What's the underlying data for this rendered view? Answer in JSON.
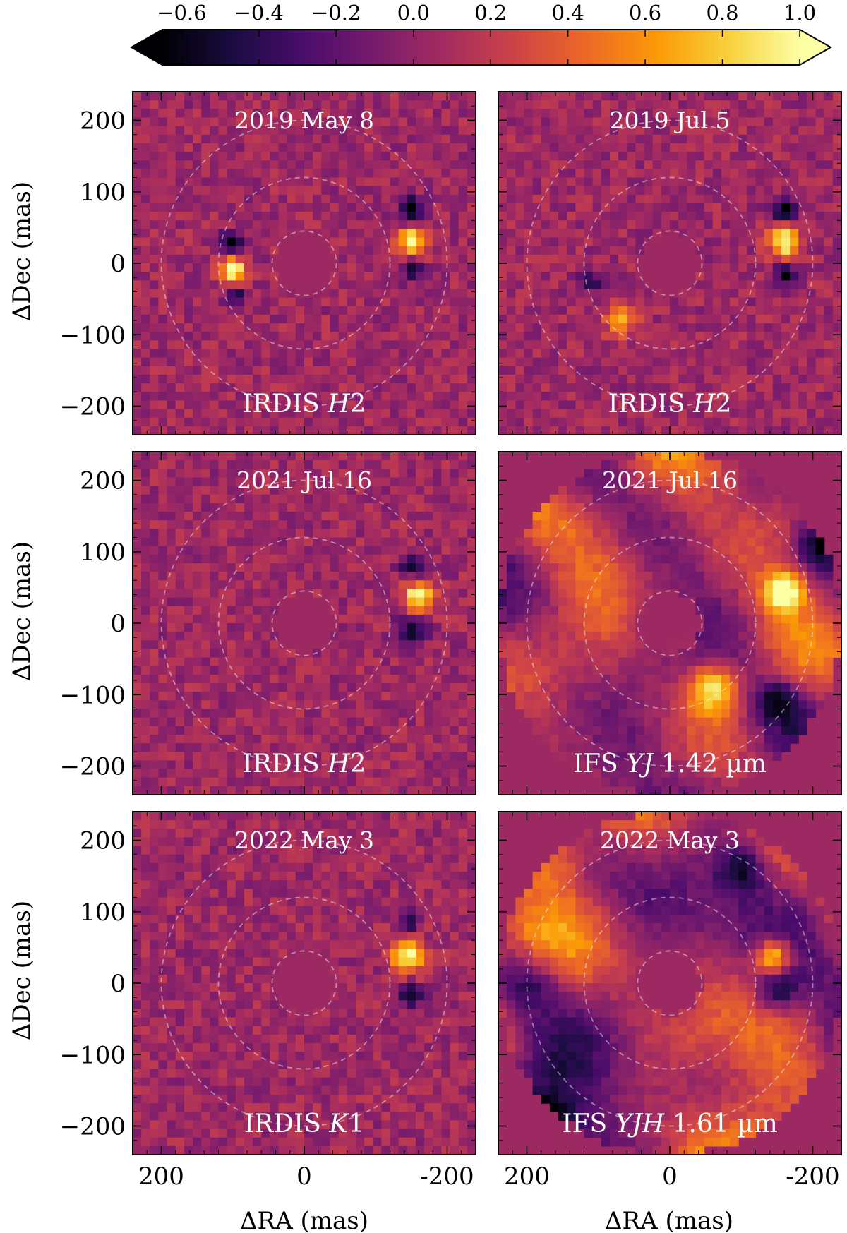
{
  "colorbar": {
    "ticks": [
      "−0.6",
      "−0.4",
      "−0.2",
      "0.0",
      "0.2",
      "0.4",
      "0.6",
      "0.8",
      "1.0"
    ],
    "tick_values": [
      -0.6,
      -0.4,
      -0.2,
      0.0,
      0.2,
      0.4,
      0.6,
      0.8,
      1.0
    ],
    "range": [
      -0.65,
      1.0
    ],
    "extend": "both",
    "colormap": "inferno",
    "stops": [
      "#000004",
      "#1b0c41",
      "#4a0c6b",
      "#781c6d",
      "#a52c60",
      "#cf4446",
      "#ed6925",
      "#fb9b06",
      "#f7d13d",
      "#fcffa4"
    ]
  },
  "axes": {
    "xlabel": "ΔRA (mas)",
    "ylabel": "ΔDec (mas)",
    "x_tick_labels": [
      "200",
      "0",
      "-200"
    ],
    "x_tick_values": [
      200,
      0,
      -200
    ],
    "y_tick_labels": [
      "200",
      "100",
      "0",
      "−100",
      "−200"
    ],
    "y_tick_values": [
      200,
      100,
      0,
      -100,
      -200
    ],
    "xlim": [
      240,
      -240
    ],
    "ylim": [
      -240,
      240
    ]
  },
  "chart_data": {
    "type": "heatmap",
    "panels": [
      {
        "date": "2019 May 8",
        "instrument_prefix": "IRDIS ",
        "instrument_italic": "H",
        "instrument_suffix": "2",
        "kind": "irdis",
        "sources": [
          {
            "x": -150,
            "y": 30,
            "value": 1.0,
            "sigma": 14
          },
          {
            "x": 100,
            "y": -10,
            "value": 1.0,
            "sigma": 13
          }
        ],
        "negatives": [
          {
            "x": -150,
            "y": 75,
            "value": -0.65,
            "sigma": 13
          },
          {
            "x": -150,
            "y": -10,
            "value": -0.5,
            "sigma": 11
          },
          {
            "x": 100,
            "y": 30,
            "value": -0.6,
            "sigma": 11
          },
          {
            "x": 95,
            "y": -45,
            "value": -0.6,
            "sigma": 10
          }
        ]
      },
      {
        "date": "2019 Jul 5",
        "instrument_prefix": "IRDIS ",
        "instrument_italic": "H",
        "instrument_suffix": "2",
        "kind": "irdis",
        "sources": [
          {
            "x": -160,
            "y": 30,
            "value": 1.0,
            "sigma": 15
          },
          {
            "x": 70,
            "y": -80,
            "value": 0.55,
            "sigma": 16
          }
        ],
        "negatives": [
          {
            "x": -160,
            "y": 75,
            "value": -0.65,
            "sigma": 13
          },
          {
            "x": -160,
            "y": -15,
            "value": -0.6,
            "sigma": 11
          },
          {
            "x": 110,
            "y": -25,
            "value": -0.5,
            "sigma": 12
          }
        ]
      },
      {
        "date": "2021 Jul 16",
        "instrument_prefix": "IRDIS ",
        "instrument_italic": "H",
        "instrument_suffix": "2",
        "kind": "irdis",
        "sources": [
          {
            "x": -160,
            "y": 37,
            "value": 1.0,
            "sigma": 15
          }
        ],
        "negatives": [
          {
            "x": -150,
            "y": 80,
            "value": -0.6,
            "sigma": 12
          },
          {
            "x": -150,
            "y": -10,
            "value": -0.65,
            "sigma": 14
          }
        ]
      },
      {
        "date": "2021 Jul 16",
        "instrument_prefix": "IFS ",
        "instrument_italic": "YJ",
        "instrument_suffix": " 1.42 µm",
        "kind": "ifs",
        "sources": [
          {
            "x": -160,
            "y": 45,
            "value": 1.0,
            "sigma": 18
          },
          {
            "x": -60,
            "y": -90,
            "value": 0.9,
            "sigma": 25
          }
        ],
        "negatives": [
          {
            "x": -210,
            "y": 110,
            "value": -0.65,
            "sigma": 25
          },
          {
            "x": -150,
            "y": -110,
            "value": -0.6,
            "sigma": 22
          }
        ]
      },
      {
        "date": "2022 May 3",
        "instrument_prefix": "IRDIS ",
        "instrument_italic": "K",
        "instrument_suffix": "1",
        "kind": "irdis",
        "sources": [
          {
            "x": -145,
            "y": 37,
            "value": 1.0,
            "sigma": 16
          }
        ],
        "negatives": [
          {
            "x": -150,
            "y": -17,
            "value": -0.6,
            "sigma": 12
          },
          {
            "x": -150,
            "y": 85,
            "value": -0.4,
            "sigma": 10
          }
        ]
      },
      {
        "date": "2022 May 3",
        "instrument_prefix": "IFS ",
        "instrument_italic": "YJH",
        "instrument_suffix": " 1.61 µm",
        "kind": "ifs",
        "sources": [
          {
            "x": -145,
            "y": 37,
            "value": 1.0,
            "sigma": 18
          },
          {
            "x": 170,
            "y": 180,
            "value": 0.6,
            "sigma": 35
          },
          {
            "x": -210,
            "y": -170,
            "value": 0.9,
            "sigma": 15
          }
        ],
        "negatives": [
          {
            "x": 175,
            "y": -200,
            "value": -0.65,
            "sigma": 30
          },
          {
            "x": 200,
            "y": 0,
            "value": -0.65,
            "sigma": 32
          },
          {
            "x": -100,
            "y": 160,
            "value": -0.6,
            "sigma": 25
          },
          {
            "x": -150,
            "y": -10,
            "value": -0.55,
            "sigma": 20
          }
        ]
      }
    ],
    "guide_circles_mas": [
      45,
      120,
      200
    ]
  }
}
